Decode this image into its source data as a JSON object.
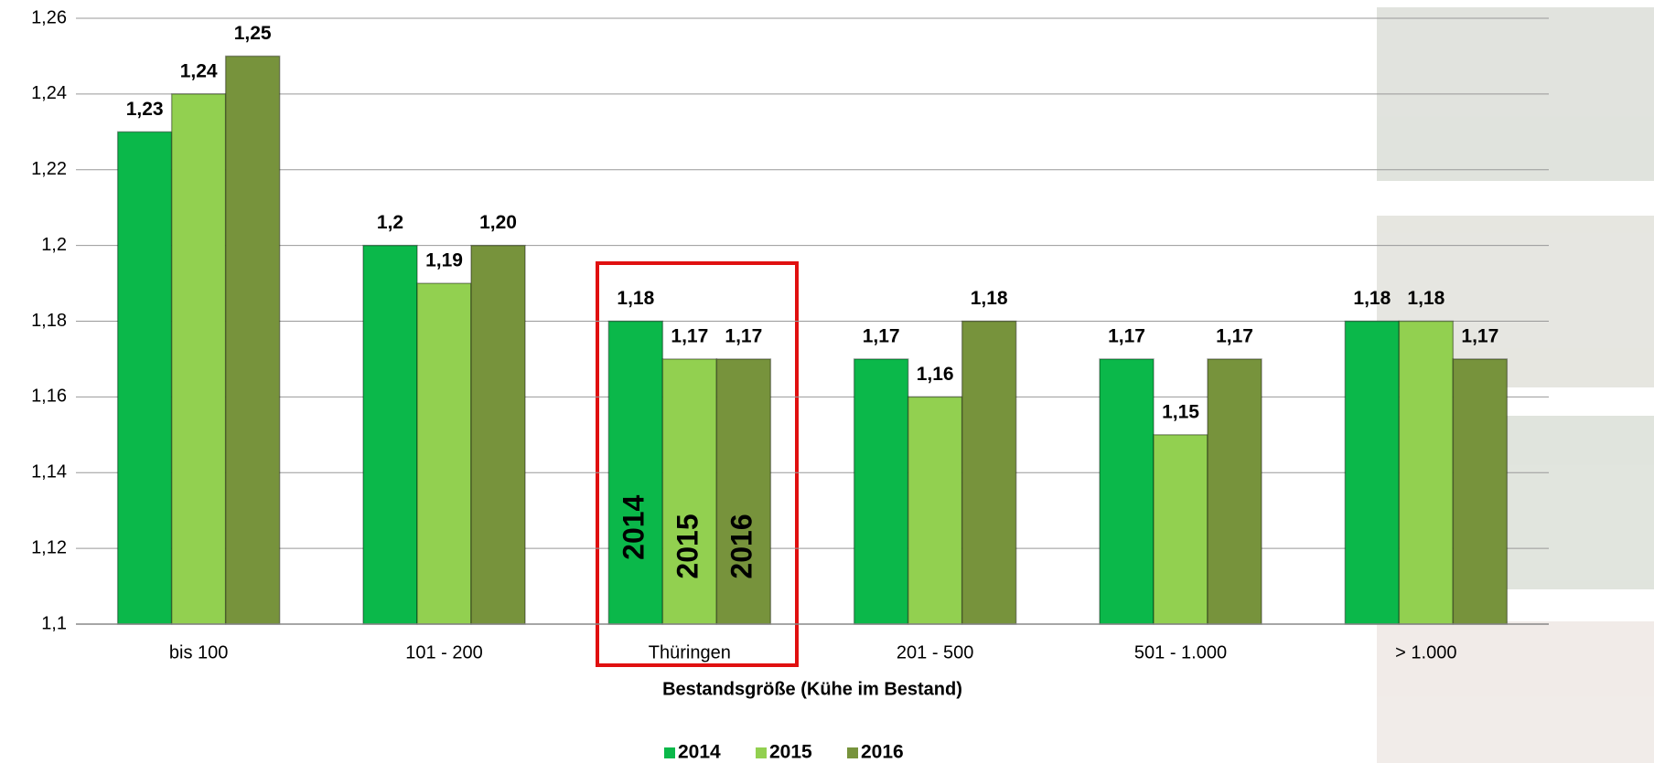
{
  "chart_data": {
    "type": "bar",
    "x_label": "Bestandsgröße (Kühe im Bestand)",
    "categories": [
      "bis 100",
      "101 - 200",
      "Thüringen",
      "201 - 500",
      "501 - 1.000",
      "> 1.000"
    ],
    "series": [
      {
        "name": "2014",
        "color": "#0bb84a",
        "values": [
          1.23,
          1.2,
          1.18,
          1.17,
          1.17,
          1.18
        ],
        "value_labels": [
          "1,23",
          "1,2",
          "1,18",
          "1,17",
          "1,17",
          "1,18"
        ]
      },
      {
        "name": "2015",
        "color": "#92d050",
        "values": [
          1.24,
          1.19,
          1.17,
          1.16,
          1.15,
          1.18
        ],
        "value_labels": [
          "1,24",
          "1,19",
          "1,17",
          "1,16",
          "1,15",
          "1,18"
        ]
      },
      {
        "name": "2016",
        "color": "#77933c",
        "values": [
          1.25,
          1.2,
          1.17,
          1.18,
          1.17,
          1.17
        ],
        "value_labels": [
          "1,25",
          "1,20",
          "1,17",
          "1,18",
          "1,17",
          "1,17"
        ]
      }
    ],
    "ylim": [
      1.1,
      1.26
    ],
    "yticks": [
      {
        "value": 1.1,
        "label": "1,1"
      },
      {
        "value": 1.12,
        "label": "1,12"
      },
      {
        "value": 1.14,
        "label": "1,14"
      },
      {
        "value": 1.16,
        "label": "1,16"
      },
      {
        "value": 1.18,
        "label": "1,18"
      },
      {
        "value": 1.2,
        "label": "1,2"
      },
      {
        "value": 1.22,
        "label": "1,22"
      },
      {
        "value": 1.24,
        "label": "1,24"
      },
      {
        "value": 1.26,
        "label": "1,26"
      }
    ],
    "grid": true,
    "legend": "bottom"
  }
}
